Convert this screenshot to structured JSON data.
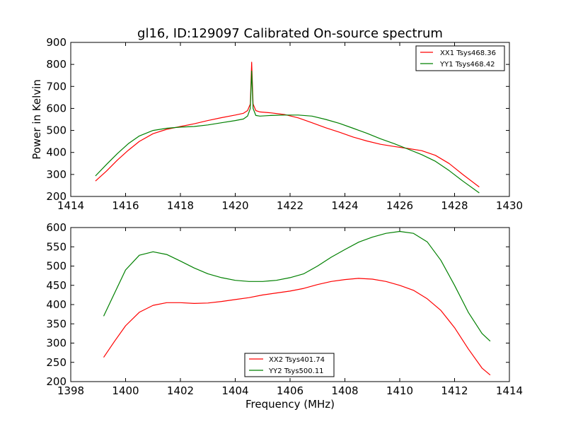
{
  "colors": {
    "xx": "#ff0000",
    "yy": "#008000",
    "axis": "#000000",
    "background": "#ffffff"
  },
  "chart_data": [
    {
      "type": "line",
      "title": "gl16, ID:129097 Calibrated On-source spectrum",
      "xlabel": "",
      "ylabel": "Power in Kelvin",
      "xlim": [
        1414,
        1430
      ],
      "ylim": [
        200,
        900
      ],
      "xticks": [
        "1414",
        "1416",
        "1418",
        "1420",
        "1422",
        "1424",
        "1426",
        "1428",
        "1430"
      ],
      "yticks": [
        "200",
        "300",
        "400",
        "500",
        "600",
        "700",
        "800",
        "900"
      ],
      "grid": false,
      "legend_position": "upper right",
      "series": [
        {
          "name": "XX1 Tsys468.36",
          "color_key": "xx",
          "x": [
            1414.9,
            1415.3,
            1415.7,
            1416.1,
            1416.5,
            1417.0,
            1417.5,
            1418.0,
            1418.5,
            1419.0,
            1419.5,
            1420.0,
            1420.3,
            1420.45,
            1420.55,
            1420.6,
            1420.65,
            1420.75,
            1420.9,
            1421.3,
            1421.8,
            1422.3,
            1422.8,
            1423.3,
            1423.8,
            1424.3,
            1424.8,
            1425.3,
            1425.8,
            1426.3,
            1426.8,
            1427.3,
            1427.8,
            1428.3,
            1428.9
          ],
          "y": [
            270,
            315,
            365,
            410,
            450,
            485,
            505,
            518,
            530,
            545,
            558,
            570,
            578,
            590,
            620,
            810,
            620,
            590,
            584,
            580,
            572,
            557,
            535,
            512,
            492,
            470,
            452,
            437,
            427,
            418,
            408,
            387,
            350,
            300,
            243
          ]
        },
        {
          "name": "YY1 Tsys468.42",
          "color_key": "yy",
          "x": [
            1414.9,
            1415.3,
            1415.7,
            1416.1,
            1416.5,
            1417.0,
            1417.5,
            1418.0,
            1418.5,
            1419.0,
            1419.5,
            1420.0,
            1420.3,
            1420.45,
            1420.55,
            1420.6,
            1420.65,
            1420.75,
            1420.9,
            1421.3,
            1421.8,
            1422.3,
            1422.8,
            1423.3,
            1423.8,
            1424.3,
            1424.8,
            1425.3,
            1425.8,
            1426.3,
            1426.8,
            1427.3,
            1427.8,
            1428.3,
            1428.9
          ],
          "y": [
            293,
            345,
            395,
            440,
            475,
            500,
            510,
            515,
            518,
            525,
            535,
            545,
            552,
            565,
            600,
            770,
            600,
            568,
            565,
            568,
            570,
            570,
            565,
            550,
            532,
            510,
            487,
            462,
            440,
            415,
            390,
            360,
            318,
            270,
            216
          ]
        }
      ]
    },
    {
      "type": "line",
      "title": "",
      "xlabel": "Frequency (MHz)",
      "ylabel": "",
      "xlim": [
        1398,
        1414
      ],
      "ylim": [
        200,
        600
      ],
      "xticks": [
        "1398",
        "1400",
        "1402",
        "1404",
        "1406",
        "1408",
        "1410",
        "1412",
        "1414"
      ],
      "yticks": [
        "200",
        "250",
        "300",
        "350",
        "400",
        "450",
        "500",
        "550",
        "600"
      ],
      "grid": false,
      "legend_position": "lower center",
      "series": [
        {
          "name": "XX2 Tsys401.74",
          "color_key": "xx",
          "x": [
            1399.2,
            1399.6,
            1400.0,
            1400.5,
            1401.0,
            1401.5,
            1402.0,
            1402.5,
            1403.0,
            1403.5,
            1404.0,
            1404.5,
            1405.0,
            1405.5,
            1406.0,
            1406.5,
            1407.0,
            1407.5,
            1408.0,
            1408.5,
            1409.0,
            1409.5,
            1410.0,
            1410.5,
            1411.0,
            1411.5,
            1412.0,
            1412.5,
            1413.0,
            1413.3
          ],
          "y": [
            263,
            305,
            345,
            380,
            398,
            405,
            405,
            403,
            404,
            408,
            413,
            418,
            425,
            430,
            435,
            442,
            452,
            460,
            465,
            468,
            466,
            460,
            450,
            437,
            415,
            385,
            340,
            285,
            235,
            217
          ]
        },
        {
          "name": "YY2 Tsys500.11",
          "color_key": "yy",
          "x": [
            1399.2,
            1399.6,
            1400.0,
            1400.5,
            1401.0,
            1401.5,
            1402.0,
            1402.5,
            1403.0,
            1403.5,
            1404.0,
            1404.5,
            1405.0,
            1405.5,
            1406.0,
            1406.5,
            1407.0,
            1407.5,
            1408.0,
            1408.5,
            1409.0,
            1409.5,
            1410.0,
            1410.5,
            1411.0,
            1411.5,
            1412.0,
            1412.5,
            1413.0,
            1413.3
          ],
          "y": [
            370,
            430,
            490,
            528,
            537,
            530,
            513,
            495,
            480,
            470,
            463,
            460,
            460,
            463,
            470,
            480,
            500,
            523,
            543,
            562,
            575,
            585,
            590,
            585,
            563,
            515,
            450,
            380,
            325,
            305
          ]
        }
      ]
    }
  ]
}
